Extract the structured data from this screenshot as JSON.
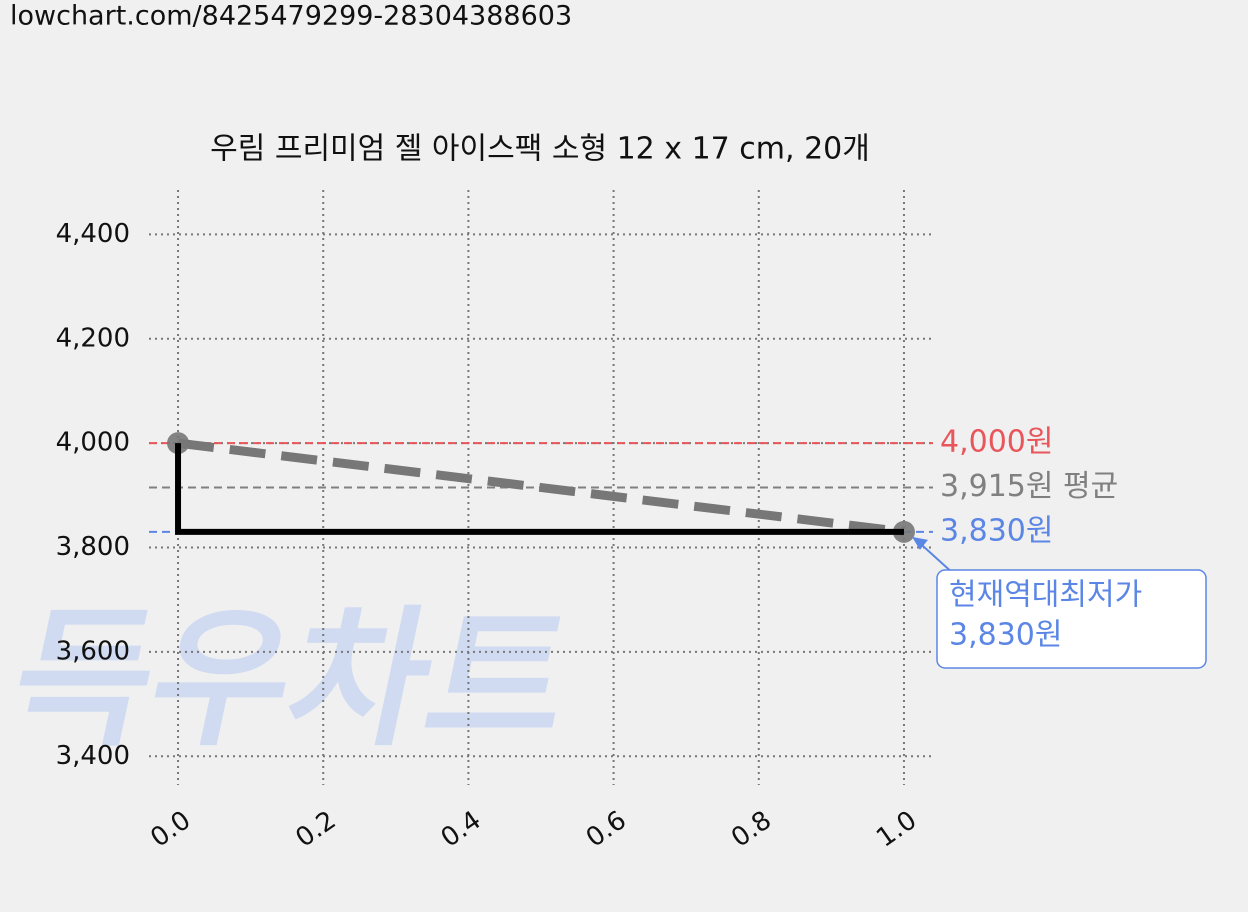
{
  "chart_data": {
    "type": "line",
    "url": "lowchart.com/8425479299-28304388603",
    "title": "우림 프리미엄 젤 아이스팩 소형 12 x 17 cm, 20개",
    "watermark": "득우차트",
    "xlim": [
      -0.04,
      1.04
    ],
    "ylim": [
      3345,
      4485
    ],
    "xticks": [
      {
        "value": 0,
        "label": "0.0"
      },
      0.2,
      0.4,
      0.6,
      0.8,
      {
        "value": 1,
        "label": "1.0"
      }
    ],
    "yticks": [
      {
        "value": 3400,
        "label": "3,400"
      },
      {
        "value": 3600,
        "label": "3,600"
      },
      {
        "value": 3800,
        "label": "3,800"
      },
      {
        "value": 4000,
        "label": "4,000"
      },
      {
        "value": 4200,
        "label": "4,200"
      },
      {
        "value": 4400,
        "label": "4,400"
      }
    ],
    "grid": true,
    "series": [
      {
        "x": [
          0,
          1
        ],
        "values": [
          4000,
          3830
        ],
        "color": "#777777",
        "dashed": true,
        "markers": true
      },
      {
        "x": [
          0,
          0,
          1
        ],
        "values": [
          4000,
          3830,
          3830
        ],
        "color": "#000000",
        "dashed": false,
        "markers": false
      }
    ],
    "reference_lines": [
      {
        "value": 4000,
        "label": "4,000원",
        "color": "#e8555a"
      },
      {
        "value": 3915,
        "label": "3,915원 평균",
        "color": "#808080"
      },
      {
        "value": 3830,
        "label": "3,830원",
        "color": "#5b86e5"
      }
    ],
    "annotation": {
      "lines": [
        "현재역대최저가",
        "3,830원"
      ],
      "x": 1,
      "y": 3830,
      "color": "#5b86e5"
    }
  }
}
